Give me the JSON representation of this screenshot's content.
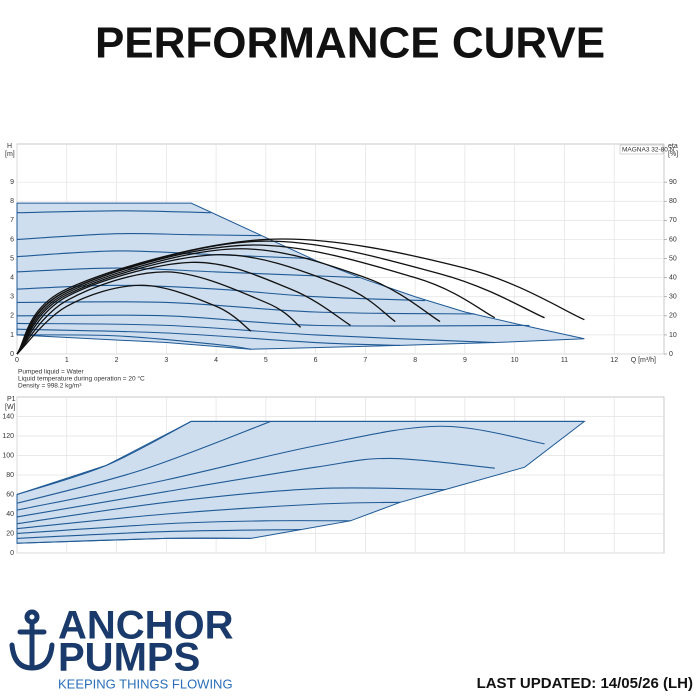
{
  "header": {
    "title": "PERFORMANCE CURVE"
  },
  "footer": {
    "updated": "LAST UPDATED: 14/05/26 (LH)",
    "logo_line1": "ANCHOR",
    "logo_line2": "PUMPS",
    "tagline": "KEEPING THINGS FLOWING"
  },
  "chart_data": [
    {
      "type": "line",
      "ylabel": "H",
      "yunit": "[m]",
      "y2label": "eta",
      "y2unit": "[%]",
      "xlabel": "Q [m³/h]",
      "legend_box": "MAGNA3 32-80 N",
      "notes": [
        "Pumped liquid = Water",
        "Liquid temperature during operation = 20 °C",
        "Density = 998.2 kg/m³"
      ],
      "xlim": [
        0,
        13
      ],
      "xticks": [
        0,
        1,
        2,
        3,
        4,
        5,
        6,
        7,
        8,
        9,
        10,
        11,
        12
      ],
      "ylim": [
        0,
        11
      ],
      "yticks": [
        0,
        1,
        2,
        3,
        4,
        5,
        6,
        7,
        8,
        9
      ],
      "y2lim": [
        0,
        110
      ],
      "y2ticks": [
        0,
        10,
        20,
        30,
        40,
        50,
        60,
        70,
        80,
        90
      ],
      "grid": true,
      "show_xtick_labels": true,
      "series": [
        {
          "fill": "#cfdeee",
          "color": "#1f5a96",
          "x": [
            0,
            3.5,
            5,
            6,
            7,
            8,
            9,
            10,
            11.4,
            9.6,
            7.7,
            5.5,
            4.7,
            3,
            0
          ],
          "values": [
            7.9,
            7.9,
            6.1,
            4.9,
            3.9,
            3.0,
            2.2,
            1.6,
            0.8,
            0.6,
            0.45,
            0.3,
            0.25,
            0.6,
            1.0
          ]
        },
        {
          "color": "#1f5a96",
          "x": [
            0,
            2,
            3.2,
            3.9
          ],
          "values": [
            7.4,
            7.5,
            7.45,
            7.4
          ]
        },
        {
          "color": "#1f5a96",
          "x": [
            0,
            2,
            3.5,
            4.9
          ],
          "values": [
            6.0,
            6.3,
            6.25,
            6.2
          ]
        },
        {
          "color": "#1f5a96",
          "x": [
            0,
            2,
            4,
            5.9
          ],
          "values": [
            5.1,
            5.4,
            5.2,
            5.0
          ]
        },
        {
          "color": "#1f5a96",
          "x": [
            0,
            2,
            4,
            6.9
          ],
          "values": [
            4.3,
            4.5,
            4.3,
            4.0
          ]
        },
        {
          "color": "#1f5a96",
          "x": [
            0,
            2,
            4,
            6,
            8.2
          ],
          "values": [
            3.4,
            3.6,
            3.4,
            3.0,
            2.8
          ]
        },
        {
          "color": "#1f5a96",
          "x": [
            0,
            3,
            6,
            9.2
          ],
          "values": [
            2.7,
            2.7,
            2.2,
            2.1
          ]
        },
        {
          "color": "#1f5a96",
          "x": [
            0,
            3,
            6,
            10.3
          ],
          "values": [
            2.0,
            2.0,
            1.5,
            1.5
          ]
        },
        {
          "color": "#1f5a96",
          "x": [
            0,
            3,
            6,
            9.6
          ],
          "values": [
            1.6,
            1.5,
            1.0,
            0.6
          ]
        },
        {
          "color": "#1f5a96",
          "x": [
            0,
            3,
            6,
            7.7
          ],
          "values": [
            1.3,
            1.1,
            0.6,
            0.45
          ]
        },
        {
          "color": "#1f5a96",
          "x": [
            0,
            2,
            4,
            4.7
          ],
          "values": [
            1.0,
            0.95,
            0.5,
            0.25
          ]
        },
        {
          "color": "#111111",
          "axis": "y2",
          "x": [
            0,
            1,
            2.5,
            4,
            4.7
          ],
          "values": [
            0,
            25,
            36,
            25,
            12
          ]
        },
        {
          "color": "#111111",
          "axis": "y2",
          "x": [
            0,
            1,
            3,
            5,
            5.7
          ],
          "values": [
            0,
            28,
            43,
            27,
            14
          ]
        },
        {
          "color": "#111111",
          "axis": "y2",
          "x": [
            0,
            1,
            3.5,
            5.5,
            6.7
          ],
          "values": [
            0,
            30,
            48,
            34,
            15
          ]
        },
        {
          "color": "#111111",
          "axis": "y2",
          "x": [
            0,
            1,
            4,
            6.5,
            7.6
          ],
          "values": [
            0,
            31,
            52,
            36,
            17
          ]
        },
        {
          "color": "#111111",
          "axis": "y2",
          "x": [
            0,
            1,
            4.3,
            7,
            8.5
          ],
          "values": [
            0,
            32,
            55,
            40,
            17
          ]
        },
        {
          "color": "#111111",
          "axis": "y2",
          "x": [
            0,
            1,
            4.6,
            8,
            9.6
          ],
          "values": [
            0,
            33,
            57,
            40,
            19
          ]
        },
        {
          "color": "#111111",
          "axis": "y2",
          "x": [
            0,
            1,
            4.8,
            8.5,
            10.6
          ],
          "values": [
            0,
            33,
            59,
            42,
            19
          ]
        },
        {
          "color": "#111111",
          "axis": "y2",
          "x": [
            0,
            1,
            5,
            9,
            11.4
          ],
          "values": [
            0,
            34,
            60,
            45,
            18
          ]
        }
      ]
    },
    {
      "type": "line",
      "ylabel": "P1",
      "yunit": "[W]",
      "xlim": [
        0,
        13
      ],
      "xticks": [
        0,
        1,
        2,
        3,
        4,
        5,
        6,
        7,
        8,
        9,
        10,
        11,
        12
      ],
      "ylim": [
        0,
        160
      ],
      "yticks": [
        0,
        20,
        40,
        60,
        80,
        100,
        120,
        140
      ],
      "grid": true,
      "show_xtick_labels": false,
      "series": [
        {
          "fill": "#cfdeee",
          "color": "#1f5a96",
          "x": [
            0,
            1.8,
            3.5,
            11.4,
            10.2,
            8.6,
            7.7,
            6.7,
            5.7,
            4.7,
            3,
            0
          ],
          "values": [
            60,
            90,
            135,
            135,
            88,
            65,
            52,
            33,
            24,
            15,
            15,
            10
          ]
        },
        {
          "color": "#1f5a96",
          "x": [
            3.5,
            11.4
          ],
          "values": [
            135,
            135
          ]
        },
        {
          "color": "#1f5a96",
          "x": [
            0,
            1.8,
            3.5
          ],
          "values": [
            60,
            90,
            135
          ]
        },
        {
          "color": "#1f5a96",
          "x": [
            0,
            2.5,
            5.1
          ],
          "values": [
            51,
            85,
            135
          ]
        },
        {
          "color": "#1f5a96",
          "x": [
            0,
            3,
            6,
            8.5,
            10.6
          ],
          "values": [
            44,
            75,
            110,
            130,
            112
          ]
        },
        {
          "color": "#1f5a96",
          "x": [
            0,
            3,
            6,
            7.5,
            9.6
          ],
          "values": [
            37,
            63,
            88,
            97,
            87
          ]
        },
        {
          "color": "#1f5a96",
          "x": [
            0,
            3,
            6,
            8.6
          ],
          "values": [
            30,
            52,
            66,
            65
          ]
        },
        {
          "color": "#1f5a96",
          "x": [
            0,
            3,
            6,
            7.7
          ],
          "values": [
            25,
            40,
            50,
            52
          ]
        },
        {
          "color": "#1f5a96",
          "x": [
            0,
            3,
            5,
            6.7
          ],
          "values": [
            20,
            30,
            33,
            33
          ]
        },
        {
          "color": "#1f5a96",
          "x": [
            0,
            3,
            5.7
          ],
          "values": [
            15,
            22,
            24
          ]
        },
        {
          "color": "#1f5a96",
          "x": [
            0,
            3,
            4.7
          ],
          "values": [
            10,
            15,
            15
          ]
        }
      ]
    }
  ]
}
